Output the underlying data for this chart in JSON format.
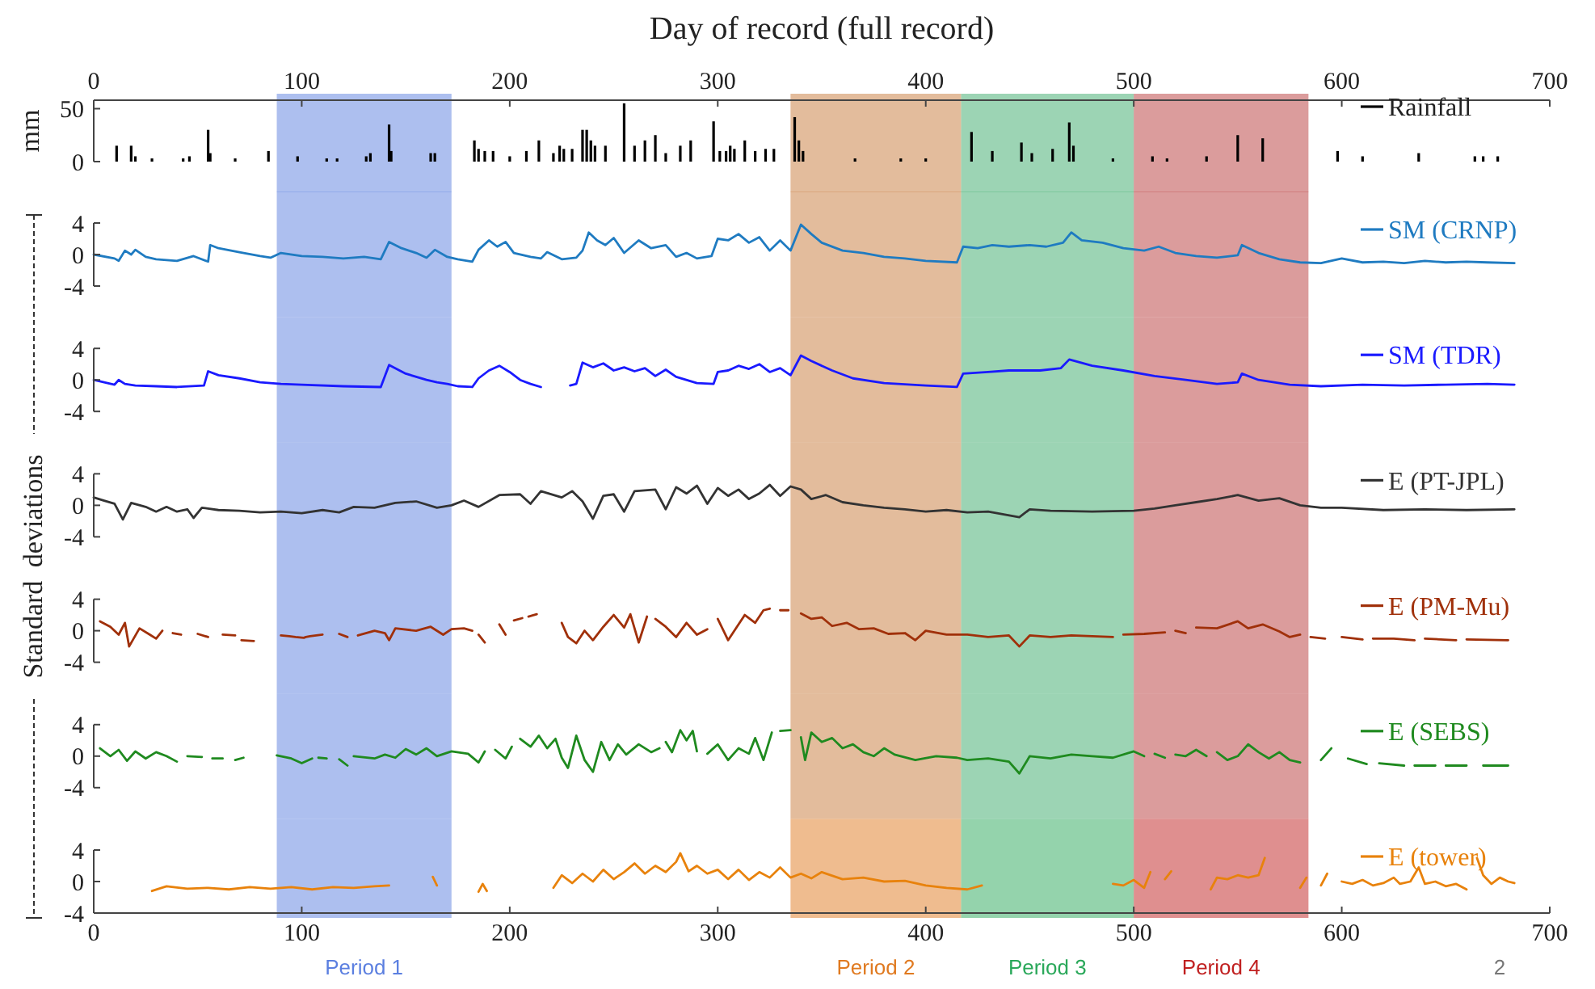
{
  "chart_data": [
    {
      "type": "bar",
      "ylabel": "mm",
      "x2label": "Day of record (full record)",
      "xlim": [
        0,
        700
      ],
      "x2lim": [
        0,
        700
      ],
      "x2ticks": [
        0,
        100,
        200,
        300,
        400,
        500,
        600,
        700
      ],
      "ylim": [
        0,
        58
      ],
      "yticks": [
        0,
        50
      ],
      "tick_labels": "y",
      "legend": "top right",
      "bands": [
        {
          "axis": "x",
          "from": 88,
          "to": 172,
          "color": "#5b7fe0"
        },
        {
          "axis": "x",
          "from": 335,
          "to": 417,
          "color": "#c87a3a"
        },
        {
          "axis": "x",
          "from": 417,
          "to": 500,
          "color": "#3aaa6a"
        },
        {
          "axis": "x",
          "from": 500,
          "to": 584,
          "color": "#b83a3a"
        }
      ],
      "series": [
        {
          "name": "Rainfall",
          "color": "#000000",
          "x": [
            11,
            18,
            20,
            28,
            43,
            46,
            55,
            56,
            68,
            84,
            98,
            112,
            117,
            131,
            133,
            142,
            143,
            162,
            164,
            183,
            185,
            188,
            192,
            200,
            208,
            214,
            221,
            224,
            226,
            230,
            235,
            237,
            239,
            241,
            246,
            255,
            260,
            265,
            270,
            275,
            282,
            287,
            298,
            301,
            304,
            306,
            308,
            313,
            318,
            323,
            327,
            337,
            339,
            341,
            366,
            388,
            400,
            422,
            432,
            446,
            451,
            461,
            469,
            471,
            490,
            509,
            516,
            535,
            550,
            562,
            598,
            610,
            637,
            664,
            668,
            675
          ],
          "values": [
            15,
            15,
            5,
            3,
            3,
            5,
            30,
            8,
            3,
            10,
            5,
            3,
            3,
            5,
            8,
            35,
            10,
            8,
            8,
            20,
            12,
            10,
            10,
            5,
            10,
            20,
            8,
            15,
            12,
            12,
            30,
            30,
            20,
            15,
            15,
            55,
            15,
            20,
            25,
            8,
            15,
            20,
            38,
            10,
            10,
            15,
            12,
            20,
            10,
            12,
            12,
            42,
            20,
            10,
            3,
            3,
            3,
            28,
            10,
            18,
            8,
            12,
            37,
            15,
            3,
            5,
            3,
            5,
            25,
            22,
            10,
            5,
            8,
            5,
            5,
            5
          ]
        }
      ]
    },
    {
      "type": "line",
      "xlim": [
        0,
        700
      ],
      "ylim": [
        -4,
        4
      ],
      "yticks": [
        -4,
        0,
        4
      ],
      "tick_labels": "y",
      "legend": "top right",
      "bands": [
        {
          "axis": "x",
          "from": 88,
          "to": 172,
          "color": "#5b7fe0"
        },
        {
          "axis": "x",
          "from": 335,
          "to": 417,
          "color": "#c87a3a"
        },
        {
          "axis": "x",
          "from": 417,
          "to": 500,
          "color": "#3aaa6a"
        },
        {
          "axis": "x",
          "from": 500,
          "to": 584,
          "color": "#b83a3a"
        }
      ],
      "series": [
        {
          "name": "SM (CRNP)",
          "color": "#1f7bc1",
          "x": [
            0,
            10,
            12,
            15,
            18,
            20,
            25,
            30,
            40,
            48,
            55,
            56,
            60,
            70,
            80,
            85,
            90,
            100,
            110,
            120,
            130,
            138,
            142,
            148,
            155,
            160,
            164,
            170,
            175,
            182,
            185,
            190,
            194,
            198,
            202,
            210,
            215,
            218,
            225,
            232,
            235,
            238,
            242,
            246,
            250,
            255,
            262,
            268,
            275,
            280,
            285,
            290,
            297,
            300,
            305,
            310,
            315,
            320,
            325,
            330,
            335,
            340,
            345,
            350,
            360,
            370,
            380,
            390,
            400,
            415,
            418,
            425,
            432,
            440,
            450,
            458,
            466,
            470,
            475,
            485,
            495,
            505,
            512,
            520,
            530,
            540,
            550,
            552,
            560,
            570,
            580,
            590,
            600,
            610,
            620,
            630,
            640,
            650,
            660,
            670,
            683
          ],
          "values": [
            0,
            -0.5,
            -0.8,
            0.5,
            0,
            0.6,
            -0.3,
            -0.6,
            -0.8,
            -0.2,
            -0.9,
            1.2,
            0.8,
            0.3,
            -0.2,
            -0.4,
            0.2,
            -0.2,
            -0.3,
            -0.5,
            -0.3,
            -0.6,
            1.6,
            0.8,
            0.2,
            -0.4,
            0.6,
            -0.3,
            -0.6,
            -0.9,
            0.6,
            1.8,
            1,
            1.6,
            0.2,
            -0.3,
            -0.5,
            0.3,
            -0.6,
            -0.4,
            0.5,
            2.8,
            1.8,
            1.2,
            2.1,
            0.2,
            1.8,
            0.8,
            1.2,
            -0.3,
            0.2,
            -0.5,
            -0.2,
            2,
            1.8,
            2.6,
            1.5,
            2.2,
            0.5,
            1.8,
            0.5,
            3.8,
            2.6,
            1.5,
            0.5,
            0.2,
            -0.3,
            -0.5,
            -0.8,
            -1,
            1,
            0.8,
            1.2,
            1,
            1.2,
            1,
            1.5,
            2.8,
            1.8,
            1.5,
            0.8,
            0.5,
            1,
            0.2,
            -0.2,
            -0.4,
            -0.1,
            1.2,
            0.2,
            -0.6,
            -1,
            -1.1,
            -0.5,
            -1,
            -0.9,
            -1.1,
            -0.8,
            -1,
            -0.9,
            -1,
            -1.1
          ]
        }
      ]
    },
    {
      "type": "line",
      "xlim": [
        0,
        700
      ],
      "ylim": [
        -4,
        4
      ],
      "yticks": [
        -4,
        0,
        4
      ],
      "tick_labels": "y",
      "legend": "top right",
      "bands": [
        {
          "axis": "x",
          "from": 88,
          "to": 172,
          "color": "#5b7fe0"
        },
        {
          "axis": "x",
          "from": 335,
          "to": 417,
          "color": "#c87a3a"
        },
        {
          "axis": "x",
          "from": 417,
          "to": 500,
          "color": "#3aaa6a"
        },
        {
          "axis": "x",
          "from": 500,
          "to": 584,
          "color": "#b83a3a"
        }
      ],
      "series": [
        {
          "name": "SM (TDR)",
          "color": "#1a1aff",
          "x": [
            0,
            5,
            10,
            12,
            15,
            20,
            30,
            40,
            53,
            55,
            60,
            70,
            80,
            90,
            100,
            120,
            138,
            142,
            150,
            160,
            165,
            170,
            175,
            182,
            185,
            190,
            195,
            200,
            205,
            210,
            215,
            222,
            229,
            232,
            235,
            240,
            245,
            250,
            255,
            260,
            265,
            270,
            275,
            280,
            290,
            298,
            300,
            305,
            310,
            315,
            320,
            325,
            330,
            335,
            340,
            345,
            355,
            365,
            380,
            400,
            415,
            418,
            430,
            440,
            455,
            465,
            469,
            480,
            495,
            510,
            525,
            540,
            550,
            552,
            560,
            575,
            590,
            610,
            630,
            650,
            670,
            683
          ],
          "values": [
            0,
            -0.3,
            -0.6,
            0,
            -0.5,
            -0.7,
            -0.8,
            -0.9,
            -0.7,
            1.1,
            0.6,
            0.2,
            -0.3,
            -0.5,
            -0.6,
            -0.8,
            -0.9,
            1.9,
            0.8,
            0,
            -0.3,
            -0.5,
            -0.8,
            -0.9,
            0.2,
            1.2,
            1.8,
            1,
            0,
            -0.5,
            -0.9,
            null,
            -0.7,
            -0.5,
            2.2,
            1.6,
            2.1,
            1.2,
            1.6,
            1.1,
            1.5,
            0.5,
            1.3,
            0.4,
            -0.4,
            -0.5,
            1,
            1.2,
            1.8,
            1.4,
            2,
            1,
            1.5,
            0.6,
            3.1,
            2.4,
            1.2,
            0.2,
            -0.4,
            -0.7,
            -0.9,
            0.8,
            1,
            1.2,
            1.2,
            1.5,
            2.6,
            1.8,
            1.2,
            0.5,
            0,
            -0.5,
            -0.3,
            0.8,
            0,
            -0.6,
            -0.8,
            -0.6,
            -0.7,
            -0.6,
            -0.5,
            -0.6
          ]
        }
      ]
    },
    {
      "type": "line",
      "ylabel": "Standard deviations",
      "xlim": [
        0,
        700
      ],
      "ylim": [
        -4,
        4
      ],
      "yticks": [
        -4,
        0,
        4
      ],
      "tick_labels": "y",
      "legend": "top right",
      "bands": [
        {
          "axis": "x",
          "from": 88,
          "to": 172,
          "color": "#5b7fe0"
        },
        {
          "axis": "x",
          "from": 335,
          "to": 417,
          "color": "#c87a3a"
        },
        {
          "axis": "x",
          "from": 417,
          "to": 500,
          "color": "#3aaa6a"
        },
        {
          "axis": "x",
          "from": 500,
          "to": 584,
          "color": "#b83a3a"
        }
      ],
      "series": [
        {
          "name": "E (PT-JPL)",
          "color": "#333333",
          "x": [
            0,
            5,
            10,
            14,
            18,
            25,
            30,
            35,
            40,
            45,
            48,
            52,
            60,
            70,
            80,
            90,
            100,
            110,
            118,
            125,
            135,
            145,
            155,
            165,
            172,
            178,
            185,
            195,
            205,
            210,
            215,
            225,
            230,
            235,
            240,
            245,
            250,
            255,
            260,
            270,
            275,
            280,
            285,
            290,
            295,
            300,
            305,
            310,
            315,
            320,
            325,
            330,
            335,
            340,
            345,
            352,
            360,
            370,
            380,
            390,
            400,
            410,
            420,
            430,
            445,
            450,
            460,
            480,
            500,
            510,
            520,
            530,
            540,
            550,
            560,
            570,
            580,
            590,
            600,
            620,
            640,
            660,
            683
          ],
          "values": [
            1,
            0.6,
            0.2,
            -1.8,
            0.3,
            -0.2,
            -0.8,
            -0.2,
            -0.8,
            -0.5,
            -1.6,
            -0.3,
            -0.6,
            -0.7,
            -0.9,
            -0.8,
            -1,
            -0.6,
            -0.9,
            -0.2,
            -0.3,
            0.3,
            0.5,
            -0.3,
            0,
            0.6,
            -0.2,
            1.3,
            1.4,
            0.2,
            1.8,
            1,
            1.8,
            0.5,
            -1.7,
            1.2,
            1.4,
            -0.8,
            1.8,
            2,
            -0.5,
            2.3,
            1.5,
            2.5,
            0.2,
            2.2,
            1.2,
            2,
            0.8,
            1.5,
            2.6,
            1.2,
            2.4,
            2,
            0.8,
            1.3,
            0.4,
            0,
            -0.3,
            -0.5,
            -0.8,
            -0.6,
            -0.9,
            -0.8,
            -1.5,
            -0.5,
            -0.7,
            -0.8,
            -0.7,
            -0.4,
            0,
            0.4,
            0.8,
            1.3,
            0.6,
            0.9,
            0,
            -0.3,
            -0.3,
            -0.6,
            -0.5,
            -0.6,
            -0.5
          ]
        }
      ]
    },
    {
      "type": "line",
      "xlim": [
        0,
        700
      ],
      "ylim": [
        -4,
        4
      ],
      "yticks": [
        -4,
        0,
        4
      ],
      "tick_labels": "y",
      "legend": "top right",
      "bands": [
        {
          "axis": "x",
          "from": 88,
          "to": 172,
          "color": "#5b7fe0"
        },
        {
          "axis": "x",
          "from": 335,
          "to": 417,
          "color": "#c87a3a"
        },
        {
          "axis": "x",
          "from": 417,
          "to": 500,
          "color": "#3aaa6a"
        },
        {
          "axis": "x",
          "from": 500,
          "to": 584,
          "color": "#b83a3a"
        }
      ],
      "series": [
        {
          "name": "E (PM-Mu)",
          "color": "#a0300a",
          "x": [
            3,
            8,
            12,
            15,
            17,
            22,
            27,
            30,
            33,
            35,
            38,
            42,
            46,
            50,
            55,
            58,
            62,
            68,
            70,
            71,
            77,
            80,
            90,
            94,
            97,
            101,
            102,
            104,
            110,
            114,
            118,
            122,
            124,
            127,
            135,
            140,
            142,
            145,
            155,
            162,
            168,
            172,
            178,
            182,
            183,
            185,
            188,
            191,
            195,
            198,
            200,
            202,
            206,
            207,
            209,
            213,
            217,
            225,
            228,
            232,
            236,
            240,
            245,
            250,
            255,
            258,
            262,
            266,
            268,
            270,
            275,
            280,
            285,
            290,
            295,
            297,
            300,
            305,
            310,
            313,
            318,
            322,
            325,
            329,
            330,
            334,
            337,
            340,
            345,
            350,
            355,
            362,
            368,
            375,
            382,
            390,
            395,
            400,
            410,
            420,
            430,
            440,
            445,
            450,
            460,
            470,
            480,
            490,
            492,
            495,
            505,
            515,
            517,
            520,
            525,
            527,
            530,
            540,
            550,
            555,
            562,
            570,
            575,
            580,
            582,
            585,
            592,
            596,
            600,
            610,
            612,
            615,
            625,
            635,
            637,
            640,
            655,
            657,
            660,
            680
          ],
          "values": [
            1.2,
            0.5,
            -0.5,
            1,
            -2,
            0.3,
            -0.5,
            -1,
            0,
            null,
            -0.3,
            -0.5,
            null,
            -0.4,
            -0.8,
            null,
            -0.5,
            -0.6,
            null,
            -1.2,
            -1.3,
            null,
            -0.6,
            -0.7,
            -0.8,
            -0.9,
            -0.8,
            -0.7,
            -0.5,
            null,
            -0.4,
            -0.8,
            null,
            -0.6,
            0,
            -0.3,
            -1.2,
            0.3,
            0,
            0.5,
            -0.5,
            0.2,
            0.3,
            0,
            null,
            -0.5,
            -1.5,
            null,
            0.8,
            -0.5,
            null,
            1.3,
            1.6,
            null,
            1.8,
            2.1,
            null,
            1,
            -0.8,
            -1.6,
            0,
            -1.2,
            0.5,
            2,
            0.4,
            2.1,
            -1.5,
            1.8,
            null,
            1.5,
            0.5,
            -0.8,
            1,
            -0.5,
            0.2,
            null,
            1.5,
            -1.2,
            0.8,
            2,
            1,
            2.6,
            2.8,
            null,
            2.6,
            2.6,
            null,
            2.2,
            1.5,
            1.7,
            0.6,
            1,
            0.2,
            0.3,
            -0.4,
            -0.3,
            -1.2,
            0,
            -0.5,
            -0.5,
            -0.8,
            -0.6,
            -2,
            -0.6,
            -0.8,
            -0.6,
            -0.7,
            -0.8,
            null,
            -0.5,
            -0.4,
            -0.2,
            null,
            0,
            -0.3,
            null,
            0.4,
            0.3,
            1.2,
            0.3,
            0.8,
            -0.1,
            -0.8,
            -0.5,
            null,
            -0.8,
            -1,
            null,
            -0.8,
            -1.1,
            null,
            -1,
            -1,
            -1.2,
            null,
            -1,
            -1.2,
            null,
            -1.1,
            -1.2
          ]
        }
      ]
    },
    {
      "type": "line",
      "xlim": [
        0,
        700
      ],
      "ylim": [
        -4,
        4
      ],
      "yticks": [
        -4,
        0,
        4
      ],
      "tick_labels": "y",
      "legend": "top right",
      "bands": [
        {
          "axis": "x",
          "from": 88,
          "to": 172,
          "color": "#5b7fe0"
        },
        {
          "axis": "x",
          "from": 335,
          "to": 417,
          "color": "#c87a3a"
        },
        {
          "axis": "x",
          "from": 417,
          "to": 500,
          "color": "#3aaa6a"
        },
        {
          "axis": "x",
          "from": 500,
          "to": 584,
          "color": "#b83a3a"
        }
      ],
      "series": [
        {
          "name": "E (SEBS)",
          "color": "#1f8a1f",
          "x": [
            3,
            8,
            12,
            16,
            20,
            25,
            30,
            35,
            40,
            42,
            45,
            52,
            55,
            57,
            62,
            65,
            68,
            72,
            80,
            88,
            95,
            100,
            105,
            106,
            108,
            112,
            113,
            118,
            122,
            123,
            125,
            135,
            140,
            145,
            150,
            155,
            160,
            165,
            172,
            180,
            185,
            188,
            190,
            193,
            198,
            201,
            203,
            205,
            210,
            214,
            218,
            222,
            225,
            228,
            232,
            236,
            240,
            244,
            248,
            252,
            256,
            262,
            268,
            272,
            273,
            275,
            278,
            282,
            285,
            288,
            290,
            292,
            295,
            300,
            305,
            310,
            315,
            318,
            322,
            326,
            328,
            330,
            335,
            337,
            340,
            342,
            345,
            350,
            355,
            360,
            365,
            370,
            375,
            380,
            385,
            395,
            405,
            415,
            420,
            430,
            440,
            445,
            450,
            460,
            470,
            480,
            490,
            500,
            505,
            507,
            510,
            515,
            517,
            520,
            525,
            530,
            535,
            537,
            540,
            545,
            550,
            555,
            560,
            565,
            570,
            575,
            580,
            585,
            590,
            595,
            599,
            603,
            612,
            615,
            618,
            630,
            632,
            635,
            645,
            647,
            650,
            660,
            664,
            668,
            680
          ],
          "values": [
            1,
            0,
            0.8,
            -0.6,
            0.6,
            -0.3,
            0.5,
            0,
            -0.7,
            null,
            0,
            -0.1,
            null,
            -0.3,
            -0.3,
            null,
            -0.5,
            -0.2,
            null,
            0.1,
            -0.3,
            -0.9,
            -0.3,
            null,
            -0.2,
            -0.3,
            null,
            -0.4,
            -1.2,
            null,
            0,
            -0.3,
            0.2,
            -0.2,
            0.9,
            0.2,
            1,
            0,
            0.6,
            0.3,
            -0.8,
            0.6,
            null,
            0.8,
            -0.3,
            1.2,
            null,
            2.2,
            1.2,
            2.6,
            1,
            2.2,
            -0.2,
            -1.5,
            2.6,
            -0.5,
            -2,
            1.8,
            -0.5,
            1.5,
            0.2,
            1.5,
            0.5,
            1,
            null,
            1.8,
            0.5,
            3.3,
            2,
            3.2,
            0.6,
            null,
            0.3,
            1.5,
            -0.5,
            1,
            0.3,
            2.3,
            -0.5,
            3,
            null,
            3.2,
            3.3,
            null,
            2.4,
            -0.5,
            3,
            1.8,
            2.3,
            1,
            1.5,
            0.5,
            0,
            1,
            0.2,
            -0.5,
            0,
            -0.2,
            -0.5,
            -0.3,
            -0.7,
            -2.2,
            0,
            -0.3,
            0.2,
            0,
            -0.2,
            0.6,
            0,
            null,
            0.3,
            -0.2,
            null,
            0.2,
            0,
            0.8,
            0,
            null,
            0.5,
            -0.5,
            0,
            1.5,
            0.5,
            -0.3,
            0.5,
            -0.5,
            -0.8,
            null,
            -0.5,
            1,
            null,
            -0.3,
            -1,
            null,
            -0.9,
            -1.2,
            null,
            -1.2,
            -1.2,
            null,
            -1.2,
            -1.2,
            null,
            -1.2,
            -1.2
          ]
        }
      ]
    },
    {
      "type": "line",
      "xlim": [
        0,
        700
      ],
      "xticks": [
        0,
        100,
        200,
        300,
        400,
        500,
        600,
        700
      ],
      "ylim": [
        -4,
        4
      ],
      "yticks": [
        -4,
        0,
        4
      ],
      "legend": "top right",
      "bands": [
        {
          "axis": "x",
          "from": 88,
          "to": 172,
          "color": "#5b7fe0",
          "label": "Period 1"
        },
        {
          "axis": "x",
          "from": 335,
          "to": 417,
          "color": "#e07a20",
          "label": "Period 2"
        },
        {
          "axis": "x",
          "from": 417,
          "to": 500,
          "color": "#2aa85a",
          "label": "Period 3"
        },
        {
          "axis": "x",
          "from": 500,
          "to": 584,
          "color": "#c02020",
          "label": "Period 4"
        }
      ],
      "annotations": [
        "2"
      ],
      "series": [
        {
          "name": "E (tower)",
          "color": "#e8820c",
          "x": [
            28,
            35,
            45,
            55,
            65,
            75,
            85,
            95,
            105,
            115,
            125,
            135,
            142,
            150,
            163,
            165,
            175,
            185,
            187,
            189,
            200,
            221,
            225,
            230,
            235,
            240,
            245,
            250,
            255,
            260,
            265,
            270,
            275,
            280,
            282,
            286,
            290,
            295,
            300,
            305,
            310,
            315,
            320,
            325,
            330,
            335,
            340,
            345,
            350,
            360,
            370,
            380,
            390,
            400,
            410,
            420,
            427,
            460,
            490,
            495,
            500,
            505,
            508,
            512,
            515,
            518,
            530,
            537,
            540,
            545,
            550,
            555,
            560,
            563,
            570,
            580,
            583,
            586,
            590,
            593,
            596,
            600,
            605,
            610,
            615,
            620,
            625,
            628,
            633,
            637,
            640,
            645,
            650,
            655,
            660,
            662,
            665,
            668,
            672,
            676,
            680,
            683
          ],
          "values": [
            -1.2,
            -0.6,
            -0.9,
            -0.8,
            -1,
            -0.7,
            -0.9,
            -0.7,
            -1,
            -0.7,
            -0.8,
            -0.6,
            -0.5,
            null,
            0.6,
            -0.5,
            null,
            -1.3,
            -0.3,
            -1.2,
            null,
            -0.8,
            0.8,
            -0.2,
            1,
            0,
            1.5,
            0.3,
            1.2,
            2.3,
            1,
            2,
            1.2,
            2.5,
            3.6,
            1.3,
            2,
            1,
            1.5,
            0.3,
            1.5,
            0.2,
            1.2,
            0.5,
            1.8,
            0.5,
            1,
            0.4,
            1.2,
            0.3,
            0.5,
            0,
            0.1,
            -0.5,
            -0.8,
            -1,
            -0.5,
            null,
            -0.3,
            -0.5,
            0.2,
            -0.8,
            1.2,
            null,
            0.3,
            1.3,
            null,
            -1,
            0.5,
            0.3,
            0.8,
            0.5,
            0.8,
            3,
            null,
            -0.8,
            0.5,
            null,
            -0.5,
            1,
            null,
            0,
            -0.3,
            0.2,
            -0.5,
            -0.2,
            0.5,
            -0.3,
            0,
            1.8,
            -0.3,
            0,
            -0.6,
            -0.3,
            -1,
            null,
            3,
            0.8,
            -0.3,
            0.5,
            0,
            -0.2
          ]
        }
      ]
    }
  ]
}
